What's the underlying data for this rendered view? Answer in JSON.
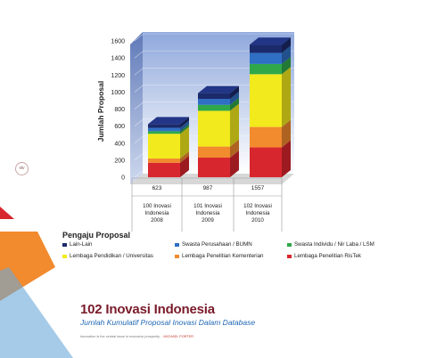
{
  "page_badge": "xiv",
  "header": {
    "title": "102 Inovasi Indonesia",
    "subtitle": "Jumlah Kumulatif Proposal Inovasi Dalam Database"
  },
  "quote": {
    "text": "Innovation is the central issue in economic prosperity -",
    "author": "MICHAEL PORTER"
  },
  "legend": {
    "title": "Pengaju Proposal",
    "items": [
      {
        "label": "Lain-Lain",
        "color": "#1b2a6b"
      },
      {
        "label": "Swasta Perusahaan / BUMN",
        "color": "#2f6fc4"
      },
      {
        "label": "Swasta Individu / Nir Laba / LSM",
        "color": "#2fa84a"
      },
      {
        "label": "Lembaga Pendidikan / Universitas",
        "color": "#f2ea1c"
      },
      {
        "label": "Lembaga Penelitian Kementerian",
        "color": "#f28a2e"
      },
      {
        "label": "Lembaga Penelitian RisTek",
        "color": "#d8262e"
      }
    ]
  },
  "chart_data": {
    "type": "bar",
    "stacked": true,
    "ylabel": "Jumlah Proposal",
    "ylim": [
      0,
      1600
    ],
    "yticks": [
      0,
      200,
      400,
      600,
      800,
      1000,
      1200,
      1400,
      1600
    ],
    "grid": true,
    "categories": [
      {
        "total": "623",
        "lines": [
          "100 Inovasi",
          "Indonesia",
          "2008"
        ]
      },
      {
        "total": "987",
        "lines": [
          "101 Inovasi",
          "Indonesia",
          "2009"
        ]
      },
      {
        "total": "1557",
        "lines": [
          "102 Inovasi",
          "Indonesia",
          "2010"
        ]
      }
    ],
    "series": [
      {
        "name": "Lembaga Penelitian RisTek",
        "color": "#d8262e",
        "values": [
          170,
          230,
          350
        ]
      },
      {
        "name": "Lembaga Penelitian Kementerian",
        "color": "#f28a2e",
        "values": [
          50,
          130,
          240
        ]
      },
      {
        "name": "Lembaga Pendidikan / Universitas",
        "color": "#f2ea1c",
        "values": [
          290,
          420,
          620
        ]
      },
      {
        "name": "Swasta Individu / Nir Laba / LSM",
        "color": "#2fa84a",
        "values": [
          30,
          70,
          120
        ]
      },
      {
        "name": "Swasta Perusahaan / BUMN",
        "color": "#2f6fc4",
        "values": [
          40,
          70,
          130
        ]
      },
      {
        "name": "Lain-Lain",
        "color": "#1b2a6b",
        "values": [
          43,
          67,
          97
        ]
      }
    ]
  }
}
